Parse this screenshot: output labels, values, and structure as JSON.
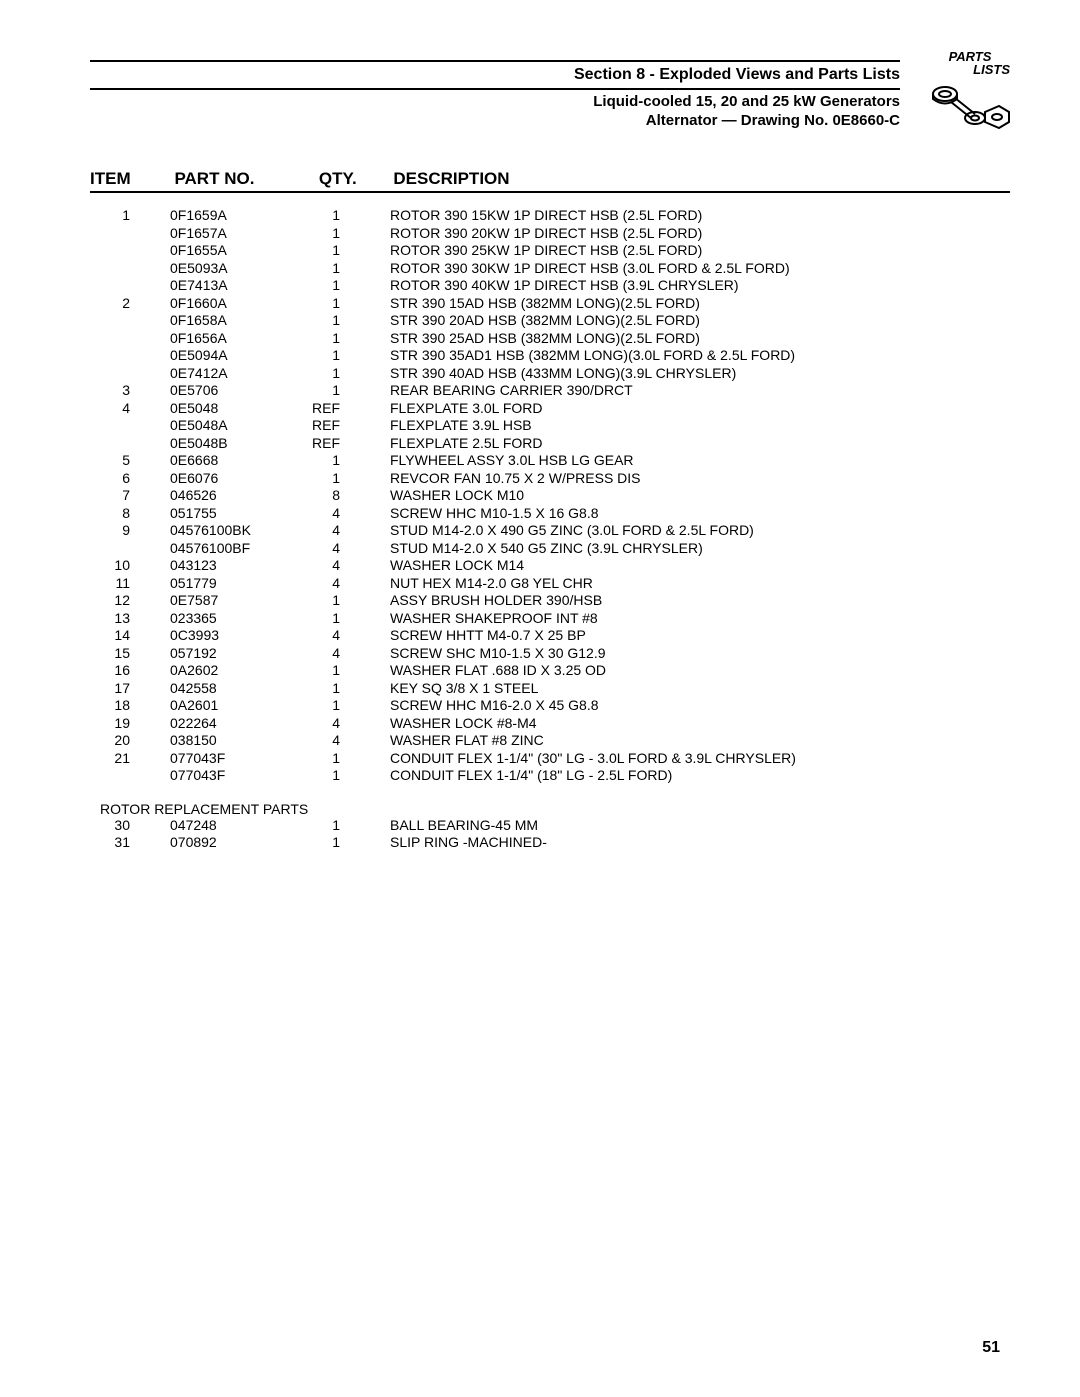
{
  "header": {
    "section_title": "Section 8 - Exploded Views and Parts Lists",
    "subtitle1": "Liquid-cooled 15, 20 and 25 kW Generators",
    "subtitle2": "Alternator — Drawing No. 0E8660-C",
    "logo_text1": "PARTS",
    "logo_text2": "LISTS"
  },
  "columns": {
    "item": "Item",
    "part": "Part No.",
    "qty": "Qty.",
    "desc": "Description"
  },
  "rows": [
    {
      "item": "1",
      "part": "0F1659A",
      "qty": "1",
      "desc": "ROTOR 390 15KW 1P DIRECT HSB (2.5L FORD)"
    },
    {
      "item": "",
      "part": "0F1657A",
      "qty": "1",
      "desc": "ROTOR 390 20KW 1P DIRECT HSB (2.5L FORD)"
    },
    {
      "item": "",
      "part": "0F1655A",
      "qty": "1",
      "desc": "ROTOR 390 25KW 1P DIRECT HSB (2.5L FORD)"
    },
    {
      "item": "",
      "part": "0E5093A",
      "qty": "1",
      "desc": "ROTOR 390 30KW 1P DIRECT HSB (3.0L FORD & 2.5L FORD)"
    },
    {
      "item": "",
      "part": "0E7413A",
      "qty": "1",
      "desc": "ROTOR 390 40KW 1P DIRECT HSB (3.9L CHRYSLER)"
    },
    {
      "item": "2",
      "part": "0F1660A",
      "qty": "1",
      "desc": "STR 390 15AD HSB (382MM LONG)(2.5L FORD)"
    },
    {
      "item": "",
      "part": "0F1658A",
      "qty": "1",
      "desc": "STR 390 20AD HSB (382MM LONG)(2.5L FORD)"
    },
    {
      "item": "",
      "part": "0F1656A",
      "qty": "1",
      "desc": "STR 390 25AD HSB (382MM LONG)(2.5L FORD)"
    },
    {
      "item": "",
      "part": "0E5094A",
      "qty": "1",
      "desc": "STR 390 35AD1 HSB (382MM LONG)(3.0L FORD & 2.5L FORD)"
    },
    {
      "item": "",
      "part": "0E7412A",
      "qty": "1",
      "desc": "STR 390 40AD HSB (433MM LONG)(3.9L CHRYSLER)"
    },
    {
      "item": "3",
      "part": "0E5706",
      "qty": "1",
      "desc": "REAR BEARING CARRIER 390/DRCT"
    },
    {
      "item": "4",
      "part": "0E5048",
      "qty": "REF",
      "desc": "FLEXPLATE 3.0L FORD"
    },
    {
      "item": "",
      "part": "0E5048A",
      "qty": "REF",
      "desc": "FLEXPLATE 3.9L HSB"
    },
    {
      "item": "",
      "part": "0E5048B",
      "qty": "REF",
      "desc": "FLEXPLATE 2.5L FORD"
    },
    {
      "item": "5",
      "part": "0E6668",
      "qty": "1",
      "desc": "FLYWHEEL ASSY 3.0L HSB LG GEAR"
    },
    {
      "item": "6",
      "part": "0E6076",
      "qty": "1",
      "desc": "REVCOR FAN 10.75 X 2 W/PRESS DIS"
    },
    {
      "item": "7",
      "part": "046526",
      "qty": "8",
      "desc": "WASHER LOCK M10"
    },
    {
      "item": "8",
      "part": "051755",
      "qty": "4",
      "desc": "SCREW HHC M10-1.5 X 16 G8.8"
    },
    {
      "item": "9",
      "part": "04576100BK",
      "qty": "4",
      "desc": "STUD M14-2.0 X 490 G5 ZINC (3.0L FORD & 2.5L FORD)"
    },
    {
      "item": "",
      "part": "04576100BF",
      "qty": "4",
      "desc": "STUD M14-2.0 X 540 G5 ZINC (3.9L CHRYSLER)"
    },
    {
      "item": "10",
      "part": "043123",
      "qty": "4",
      "desc": "WASHER LOCK M14"
    },
    {
      "item": "11",
      "part": "051779",
      "qty": "4",
      "desc": "NUT HEX M14-2.0 G8 YEL CHR"
    },
    {
      "item": "12",
      "part": "0E7587",
      "qty": "1",
      "desc": "ASSY BRUSH HOLDER 390/HSB"
    },
    {
      "item": "13",
      "part": "023365",
      "qty": "1",
      "desc": "WASHER SHAKEPROOF INT #8"
    },
    {
      "item": "14",
      "part": "0C3993",
      "qty": "4",
      "desc": "SCREW HHTT M4-0.7 X 25 BP"
    },
    {
      "item": "15",
      "part": "057192",
      "qty": "4",
      "desc": "SCREW SHC M10-1.5 X 30 G12.9"
    },
    {
      "item": "16",
      "part": "0A2602",
      "qty": "1",
      "desc": "WASHER FLAT .688 ID X 3.25 OD"
    },
    {
      "item": "17",
      "part": "042558",
      "qty": "1",
      "desc": "KEY SQ 3/8 X 1 STEEL"
    },
    {
      "item": "18",
      "part": "0A2601",
      "qty": "1",
      "desc": "SCREW HHC M16-2.0 X 45 G8.8"
    },
    {
      "item": "19",
      "part": "022264",
      "qty": "4",
      "desc": "WASHER LOCK #8-M4"
    },
    {
      "item": "20",
      "part": "038150",
      "qty": "4",
      "desc": "WASHER FLAT #8 ZINC"
    },
    {
      "item": "21",
      "part": "077043F",
      "qty": "1",
      "desc": "CONDUIT FLEX 1-1/4\" (30\" LG - 3.0L FORD & 3.9L CHRYSLER)"
    },
    {
      "item": "",
      "part": "077043F",
      "qty": "1",
      "desc": "CONDUIT FLEX 1-1/4\" (18\" LG - 2.5L FORD)"
    }
  ],
  "section2_label": "ROTOR REPLACEMENT PARTS",
  "rows2": [
    {
      "item": "30",
      "part": "047248",
      "qty": "1",
      "desc": "BALL BEARING-45 MM"
    },
    {
      "item": "31",
      "part": "070892",
      "qty": "1",
      "desc": "SLIP RING -MACHINED-"
    }
  ],
  "page_number": "51",
  "style": {
    "body_width": 1080,
    "body_height": 1397,
    "text_color": "#000000",
    "bg_color": "#ffffff",
    "rule_color": "#000000",
    "header_font_size": 16,
    "sub_font_size": 15,
    "table_header_font_size": 17,
    "body_font_size": 14,
    "col_item_width": 70,
    "col_part_width": 150,
    "col_qty_width": 70
  }
}
